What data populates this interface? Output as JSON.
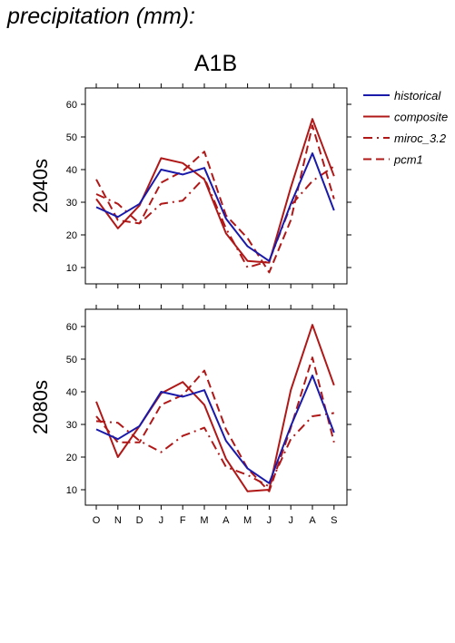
{
  "page": {
    "heading": "precipitation (mm):",
    "scenario": "A1B"
  },
  "chart_data": {
    "type": "line",
    "months": [
      "O",
      "N",
      "D",
      "J",
      "F",
      "M",
      "A",
      "M",
      "J",
      "J",
      "A",
      "S"
    ],
    "y_ticks": [
      10,
      20,
      30,
      40,
      50,
      60
    ],
    "ylim": [
      5,
      65
    ],
    "grid": false,
    "legend": {
      "placement": "right",
      "items": [
        {
          "label": "historical",
          "color": "#1a1aaa",
          "dash": "solid"
        },
        {
          "label": "composite",
          "color": "#b01818",
          "dash": "solid"
        },
        {
          "label": "miroc_3.2",
          "color": "#b01818",
          "dash": "dashdot"
        },
        {
          "label": "pcm1",
          "color": "#b01818",
          "dash": "dashed"
        }
      ]
    },
    "panels": [
      {
        "label": "2040s",
        "series": [
          {
            "name": "historical",
            "values": [
              28.5,
              25.5,
              29.5,
              40,
              38.5,
              40.5,
              25,
              16.5,
              12,
              29.5,
              45,
              27.5
            ]
          },
          {
            "name": "composite",
            "values": [
              31,
              22,
              29,
              43.5,
              42,
              37,
              20.5,
              12,
              11.5,
              34.5,
              55.5,
              38
            ]
          },
          {
            "name": "miroc_3.2",
            "values": [
              32.5,
              29.5,
              23.5,
              29.5,
              30.5,
              37.5,
              22,
              10,
              12,
              29,
              36.5,
              41
            ]
          },
          {
            "name": "pcm1",
            "values": [
              37,
              24.5,
              23.5,
              36,
              39.5,
              45.5,
              26,
              19,
              8.5,
              24.5,
              53.5,
              31
            ]
          }
        ]
      },
      {
        "label": "2080s",
        "series": [
          {
            "name": "historical",
            "values": [
              28.5,
              25.5,
              29.5,
              40,
              38.5,
              40.5,
              25,
              16.5,
              12,
              29.5,
              45,
              27.5
            ]
          },
          {
            "name": "composite",
            "values": [
              37,
              20,
              29.5,
              39.5,
              43,
              36,
              19.5,
              9.5,
              10,
              40.5,
              60.5,
              42
            ]
          },
          {
            "name": "miroc_3.2",
            "values": [
              31,
              30.5,
              25,
              21.5,
              26.5,
              29,
              17,
              14.5,
              11,
              25.5,
              32.5,
              33.5
            ]
          },
          {
            "name": "pcm1",
            "values": [
              32.5,
              24.5,
              24.5,
              36,
              39,
              46.5,
              28.5,
              16.5,
              9.5,
              29,
              50.5,
              24.5
            ]
          }
        ]
      }
    ]
  }
}
